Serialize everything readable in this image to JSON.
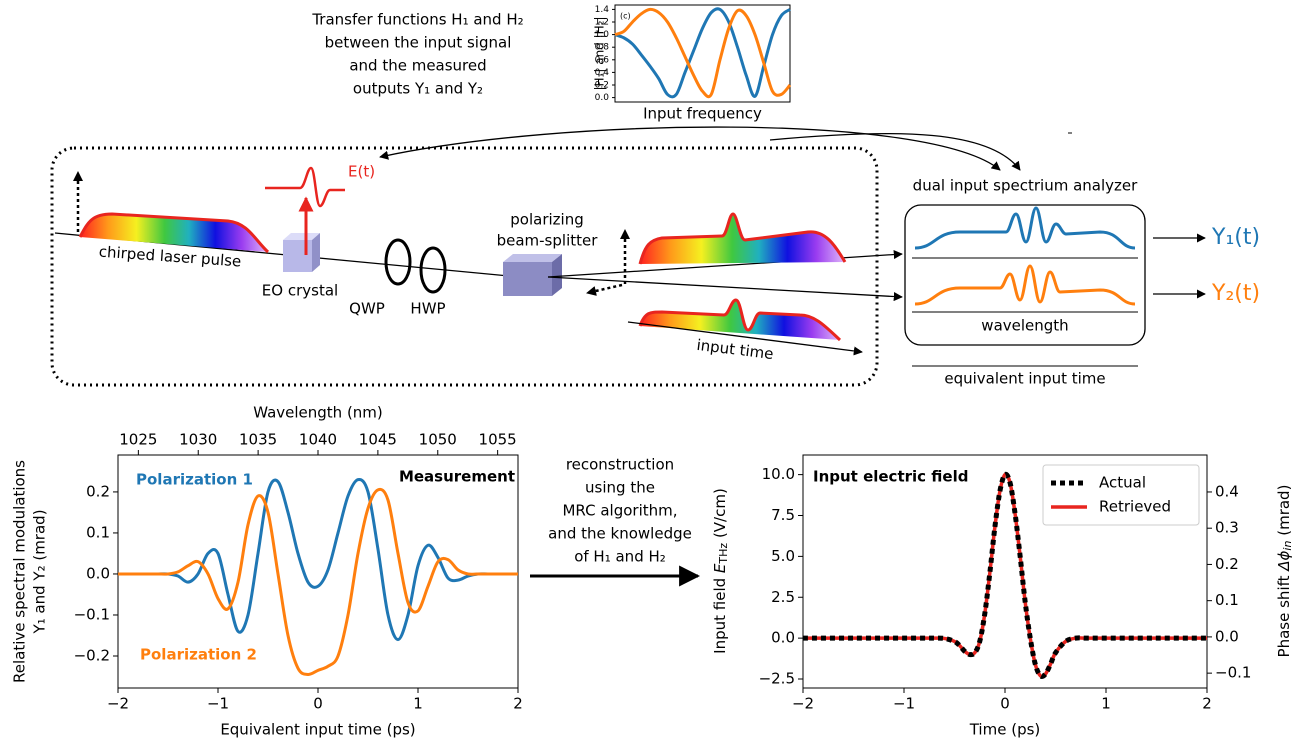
{
  "diagram": {
    "transfer_note": [
      "Transfer functions H₁ and H₂",
      "between the input signal",
      "and the measured",
      "outputs Y₁ and Y₂"
    ],
    "field_label": "E(t)",
    "pulse_label": "chirped laser pulse",
    "crystal_label": "EO crystal",
    "qwp_label": "QWP",
    "hwp_label": "HWP",
    "splitter_label": [
      "polarizing",
      "beam-splitter"
    ],
    "time_label": "input time",
    "analyzer_label": "dual input spectrium analyzer",
    "wavelength_label": "wavelength",
    "equivalent_label": "equivalent input time",
    "output_1": "Y₁(t)",
    "output_2": "Y₂(t)",
    "reconstruction_note": [
      "reconstruction",
      "using the",
      "MRC algorithm,",
      "and the knowledge",
      "of H₁ and H₂"
    ]
  },
  "chart_data": [
    {
      "type": "line",
      "panel_label": "(c)",
      "xlabel": "Input frequency",
      "ylabel": "|H₁| and |H₂|",
      "x": [
        0,
        0.05,
        0.1,
        0.15,
        0.2,
        0.25,
        0.3,
        0.35,
        0.4,
        0.45,
        0.5,
        0.55,
        0.6,
        0.65,
        0.7,
        0.75,
        0.8,
        0.85,
        0.9,
        0.95,
        1
      ],
      "series": [
        {
          "color": "#1f77b4",
          "values": [
            1.0,
            0.95,
            0.85,
            0.68,
            0.5,
            0.3,
            0.05,
            0.05,
            0.4,
            0.75,
            1.1,
            1.35,
            1.4,
            1.2,
            0.8,
            0.35,
            0.02,
            0.5,
            1.0,
            1.3,
            1.4
          ]
        },
        {
          "color": "#ff7f0e",
          "values": [
            1.0,
            1.05,
            1.2,
            1.33,
            1.4,
            1.35,
            1.2,
            0.95,
            0.65,
            0.35,
            0.1,
            0.05,
            0.6,
            1.1,
            1.38,
            1.3,
            1.0,
            0.55,
            0.1,
            0.05,
            0.2
          ]
        }
      ],
      "xlim": [
        0,
        1
      ],
      "ylim": [
        -0.07,
        1.47
      ],
      "yticks": [
        {
          "value": 0,
          "label": "0.0"
        },
        0.2,
        0.4,
        0.6,
        0.8,
        {
          "value": 1,
          "label": "1.0"
        },
        1.2,
        1.4
      ]
    },
    {
      "type": "line",
      "title": "Measurement",
      "xlabel": "Equivalent input time (ps)",
      "ylabel": [
        "Relative spectral modulations",
        "Y₁ and Y₂ (mrad)"
      ],
      "x2label": "Wavelength (nm)",
      "x": [
        -2,
        -1.9,
        -1.8,
        -1.7,
        -1.6,
        -1.5,
        -1.4,
        -1.3,
        -1.2,
        -1.1,
        -1,
        -0.9,
        -0.8,
        -0.7,
        -0.6,
        -0.5,
        -0.4,
        -0.3,
        -0.2,
        -0.1,
        0,
        0.1,
        0.2,
        0.3,
        0.4,
        0.5,
        0.6,
        0.7,
        0.8,
        0.9,
        1,
        1.1,
        1.2,
        1.3,
        1.4,
        1.5,
        1.6,
        1.7,
        1.8,
        1.9,
        2
      ],
      "series": [
        {
          "name": "Polarization 1",
          "color": "#1f77b4",
          "values": [
            0,
            0,
            0,
            0,
            0,
            0,
            -0.005,
            -0.02,
            0,
            0.05,
            0.05,
            -0.05,
            -0.14,
            -0.1,
            0.05,
            0.2,
            0.225,
            0.15,
            0.05,
            -0.02,
            -0.03,
            0.01,
            0.1,
            0.19,
            0.23,
            0.2,
            0.06,
            -0.1,
            -0.16,
            -0.1,
            0.02,
            0.07,
            0.04,
            -0.01,
            -0.015,
            -0.005,
            0,
            0,
            0,
            0,
            0
          ]
        },
        {
          "name": "Polarization 2",
          "color": "#ff7f0e",
          "values": [
            0,
            0,
            0,
            0,
            0,
            0,
            0.005,
            0.02,
            0.03,
            0,
            -0.06,
            -0.085,
            -0.02,
            0.12,
            0.19,
            0.15,
            0,
            -0.15,
            -0.23,
            -0.245,
            -0.235,
            -0.225,
            -0.2,
            -0.1,
            0.05,
            0.16,
            0.205,
            0.18,
            0.05,
            -0.07,
            -0.09,
            -0.03,
            0.03,
            0.035,
            0.01,
            0,
            0,
            0,
            0,
            0,
            0
          ]
        }
      ],
      "xlim": [
        -2,
        2
      ],
      "xticks": [
        {
          "value": -2,
          "label": "−2"
        },
        {
          "value": -1,
          "label": "−1"
        },
        0,
        1,
        2
      ],
      "ylim": [
        -0.278,
        0.29
      ],
      "yticks": [
        {
          "value": -0.2,
          "label": "−0.2"
        },
        {
          "value": -0.1,
          "label": "−0.1"
        },
        {
          "value": 0,
          "label": "0.0"
        },
        0.1,
        0.2
      ],
      "x2lim": [
        1023.3,
        1056.7
      ],
      "x2ticks": [
        1025,
        1030,
        1035,
        1040,
        1045,
        1050,
        1055
      ]
    },
    {
      "type": "line",
      "title": "Input electric field",
      "xlabel": "Time (ps)",
      "ylabel": [
        "Input field ",
        "E",
        "THz",
        " (V/cm)"
      ],
      "y2label": [
        "Phase shift ",
        "Δϕ",
        "in",
        " (mrad)"
      ],
      "x": [
        -2,
        -1.5,
        -1,
        -0.8,
        -0.7,
        -0.6,
        -0.5,
        -0.45,
        -0.4,
        -0.35,
        -0.3,
        -0.25,
        -0.2,
        -0.15,
        -0.1,
        -0.05,
        0,
        0.05,
        0.1,
        0.15,
        0.2,
        0.25,
        0.3,
        0.35,
        0.4,
        0.45,
        0.5,
        0.6,
        0.7,
        0.8,
        1,
        1.5,
        2
      ],
      "series": [
        {
          "name": "Actual",
          "color": "#000000",
          "linestyle": "dotted",
          "values": [
            0,
            0,
            0,
            0,
            0,
            -0.02,
            -0.2,
            -0.45,
            -0.8,
            -1.0,
            -0.9,
            -0.2,
            1.5,
            4.0,
            6.8,
            9.0,
            10.0,
            9.5,
            7.6,
            5.0,
            2.2,
            0,
            -1.6,
            -2.3,
            -2.2,
            -1.6,
            -0.9,
            -0.2,
            0,
            0,
            0,
            0,
            0
          ]
        },
        {
          "name": "Retrieved",
          "color": "#e8251f",
          "linestyle": "solid",
          "values": [
            0,
            0,
            0,
            0,
            0,
            -0.02,
            -0.2,
            -0.45,
            -0.8,
            -1.0,
            -0.9,
            -0.2,
            1.5,
            4.0,
            6.8,
            9.0,
            10.0,
            9.5,
            7.6,
            5.0,
            2.2,
            0,
            -1.6,
            -2.3,
            -2.2,
            -1.6,
            -0.9,
            -0.2,
            0,
            0,
            0,
            0,
            0
          ]
        }
      ],
      "legend": "upper right",
      "xlim": [
        -2,
        2
      ],
      "xticks": [
        {
          "value": -2,
          "label": "−2"
        },
        {
          "value": -1,
          "label": "−1"
        },
        0,
        1,
        2
      ],
      "ylim": [
        -3.05,
        11.2
      ],
      "yticks": [
        {
          "value": -2.5,
          "label": "−2.5"
        },
        {
          "value": 0,
          "label": "0.0"
        },
        2.5,
        {
          "value": 5,
          "label": "5.0"
        },
        7.5,
        {
          "value": 10,
          "label": "10.0"
        }
      ],
      "y2lim": [
        -0.141,
        0.502
      ],
      "y2ticks": [
        {
          "value": -0.1,
          "label": "−0.1"
        },
        {
          "value": 0,
          "label": "0.0"
        },
        0.1,
        0.2,
        0.3,
        0.4
      ]
    }
  ]
}
